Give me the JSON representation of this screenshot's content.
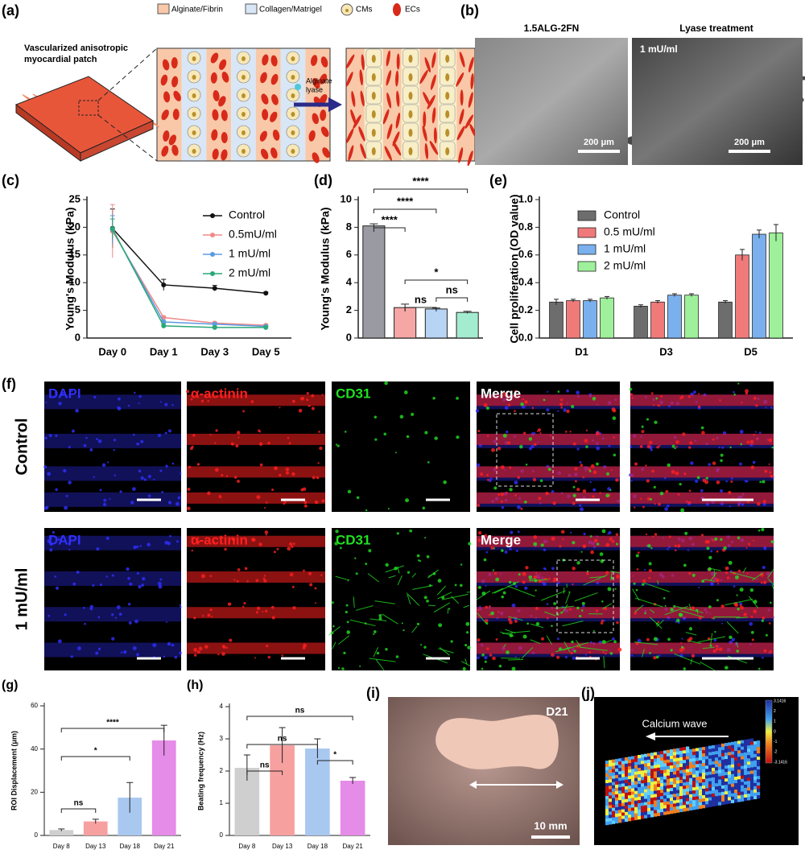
{
  "panels": {
    "a": {
      "label": "(a)",
      "patch": [
        "Vascularized anisotropic",
        "myocardial patch"
      ],
      "legend": [
        "Alginate/Fibrin",
        "Collagen/Matrigel",
        "CMs",
        "ECs"
      ],
      "arrow": [
        "Alginate",
        "lyase"
      ]
    },
    "b": {
      "label": "(b)",
      "titles": [
        "1.5ALG-2FN",
        "Lyase treatment"
      ],
      "treatment": "1 mU/ml",
      "scale_bars": [
        "200 μm",
        "200 μm"
      ]
    },
    "f": {
      "label": "(f)",
      "columns": [
        "DAPI",
        "α-actinin",
        "CD31",
        "Merge"
      ],
      "rows": [
        "Control",
        "1 mU/ml"
      ]
    },
    "i": {
      "label": "(i)",
      "day": "D21",
      "scale_bar": "10 mm"
    },
    "j": {
      "label": "(j)",
      "annotation": "Calcium wave",
      "colorbar_ticks": [
        "3.1416",
        "2",
        "1",
        "0",
        "-1",
        "-2",
        "-3.1416"
      ]
    }
  },
  "chart_data": [
    {
      "panel": "(c)",
      "type": "line",
      "ylabel": "Young's Modulus (kPa)",
      "categories": [
        "Day 0",
        "Day 1",
        "Day 3",
        "Day 5"
      ],
      "ylim": [
        0,
        25
      ],
      "yticks": [
        0,
        5,
        10,
        15,
        20,
        25
      ],
      "legend": "upper right",
      "series": [
        {
          "name": "Control",
          "color": "#111111",
          "values": [
            19.8,
            9.6,
            9.0,
            8.1
          ],
          "errors": [
            3.5,
            1.0,
            0.5,
            0.2
          ]
        },
        {
          "name": "0.5mU/ml",
          "color": "#f08a8a",
          "values": [
            19.3,
            3.7,
            2.7,
            2.3
          ],
          "errors": [
            4.8,
            0.3,
            0.2,
            0.2
          ]
        },
        {
          "name": "1 mU/ml",
          "color": "#5b9be0",
          "values": [
            19.6,
            2.9,
            2.5,
            2.1
          ],
          "errors": [
            2.5,
            0.3,
            0.2,
            0.2
          ]
        },
        {
          "name": "2 mU/ml",
          "color": "#2aa876",
          "values": [
            19.7,
            2.2,
            1.9,
            1.9
          ],
          "errors": [
            1.8,
            0.4,
            0.2,
            0.2
          ]
        }
      ]
    },
    {
      "panel": "(d)",
      "type": "bar",
      "ylabel": "Young's Modulus (kPa)",
      "ylim": [
        0,
        10
      ],
      "yticks": [
        0,
        2,
        4,
        6,
        8,
        10
      ],
      "values": [
        8.1,
        2.2,
        2.1,
        1.85
      ],
      "errors": [
        0.15,
        0.25,
        0.07,
        0.08
      ],
      "colors": [
        "#9a9aa2",
        "#f7a6a6",
        "#b8d4f5",
        "#a4ecd0"
      ],
      "annotations": [
        "****",
        "****",
        "****",
        "*",
        "ns",
        "ns"
      ]
    },
    {
      "panel": "(e)",
      "type": "bar",
      "ylabel": "Cell proliferation (OD value)",
      "categories": [
        "D1",
        "D3",
        "D5"
      ],
      "ylim": [
        0,
        1
      ],
      "yticks": [
        {
          "value": 0,
          "label": "0.0"
        },
        0.2,
        0.4,
        0.6,
        0.8,
        {
          "value": 1,
          "label": "1.0"
        }
      ],
      "legend": "upper left",
      "series": [
        {
          "name": "Control",
          "color": "#6d6d6d",
          "values": [
            0.26,
            0.23,
            0.26
          ],
          "errors": [
            0.02,
            0.01,
            0.01
          ]
        },
        {
          "name": "0.5 mU/ml",
          "color": "#f07a7a",
          "values": [
            0.27,
            0.26,
            0.6
          ],
          "errors": [
            0.01,
            0.01,
            0.04
          ]
        },
        {
          "name": "1 mU/ml",
          "color": "#7ab0ee",
          "values": [
            0.27,
            0.31,
            0.75
          ],
          "errors": [
            0.01,
            0.01,
            0.03
          ]
        },
        {
          "name": "2 mU/ml",
          "color": "#9ef09a",
          "values": [
            0.29,
            0.31,
            0.76
          ],
          "errors": [
            0.01,
            0.01,
            0.06
          ]
        }
      ]
    },
    {
      "panel": "(g)",
      "type": "bar",
      "ylabel": "ROI Displacement (μm)",
      "categories": [
        "Day 8",
        "Day 13",
        "Day 18",
        "Day 21"
      ],
      "ylim": [
        0,
        60
      ],
      "yticks": [
        0,
        20,
        40,
        60
      ],
      "values": [
        2.5,
        6.5,
        17.5,
        44
      ],
      "errors": [
        0.5,
        1,
        7,
        7
      ],
      "colors": [
        "#cfcfcf",
        "#f7a0a0",
        "#a9c8f0",
        "#e58be8"
      ],
      "annotations": [
        "****",
        "*",
        "ns"
      ]
    },
    {
      "panel": "(h)",
      "type": "bar",
      "ylabel": "Beating frequency (Hz)",
      "categories": [
        "Day 8",
        "Day 13",
        "Day 18",
        "Day 21"
      ],
      "ylim": [
        0,
        4
      ],
      "yticks": [
        0,
        1,
        2,
        3,
        4
      ],
      "values": [
        2.1,
        2.8,
        2.7,
        1.7
      ],
      "errors": [
        0.4,
        0.55,
        0.3,
        0.1
      ],
      "colors": [
        "#cfcfcf",
        "#f7a0a0",
        "#a9c8f0",
        "#e58be8"
      ],
      "annotations": [
        "ns",
        "ns",
        "ns",
        "*"
      ]
    }
  ]
}
